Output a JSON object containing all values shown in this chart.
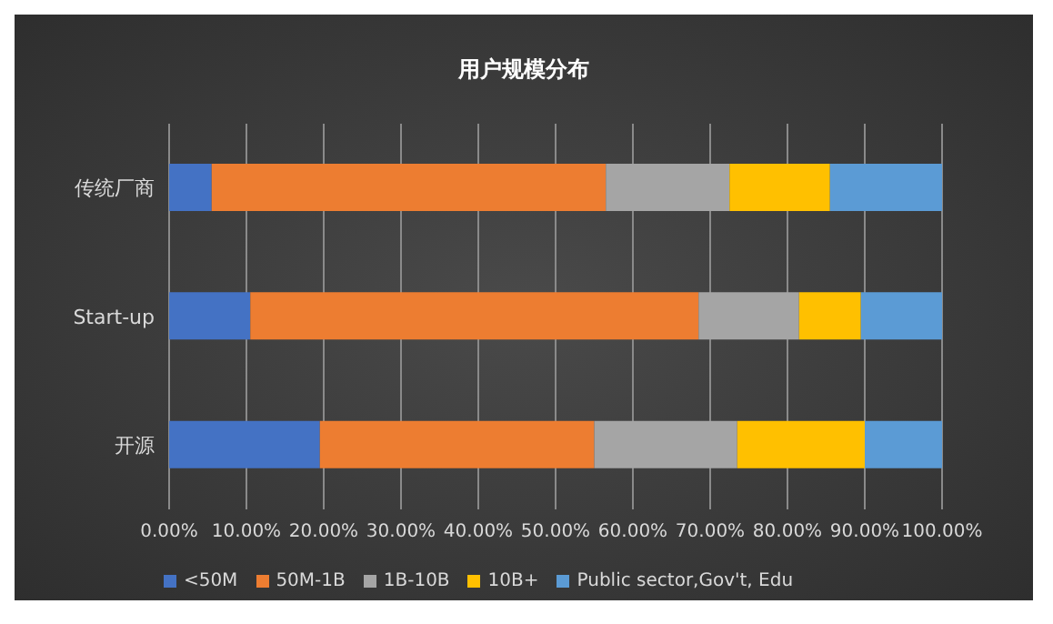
{
  "chart_data": {
    "type": "bar",
    "orientation": "horizontal",
    "stacked": true,
    "title": "用户规模分布",
    "categories": [
      "传统厂商",
      "Start-up",
      "开源"
    ],
    "series": [
      {
        "name": "<50M",
        "color": "#4472c4",
        "values": [
          5.5,
          10.5,
          19.5
        ]
      },
      {
        "name": "50M-1B",
        "color": "#ed7d31",
        "values": [
          51,
          58,
          35.5
        ]
      },
      {
        "name": "1B-10B",
        "color": "#a5a5a5",
        "values": [
          16,
          13,
          18.5
        ]
      },
      {
        "name": "10B+",
        "color": "#ffc000",
        "values": [
          13,
          8,
          16.5
        ]
      },
      {
        "name": "Public sector,Gov't, Edu",
        "color": "#5b9bd5",
        "values": [
          14.5,
          10.5,
          10
        ]
      }
    ],
    "xlim": [
      0,
      100
    ],
    "xticks": [
      {
        "value": 0,
        "label": "0.00%"
      },
      {
        "value": 10,
        "label": "10.00%"
      },
      {
        "value": 20,
        "label": "20.00%"
      },
      {
        "value": 30,
        "label": "30.00%"
      },
      {
        "value": 40,
        "label": "40.00%"
      },
      {
        "value": 50,
        "label": "50.00%"
      },
      {
        "value": 60,
        "label": "60.00%"
      },
      {
        "value": 70,
        "label": "70.00%"
      },
      {
        "value": 80,
        "label": "80.00%"
      },
      {
        "value": 90,
        "label": "90.00%"
      },
      {
        "value": 100,
        "label": "100.00%"
      }
    ],
    "grid": "x",
    "legend": "bottom"
  }
}
